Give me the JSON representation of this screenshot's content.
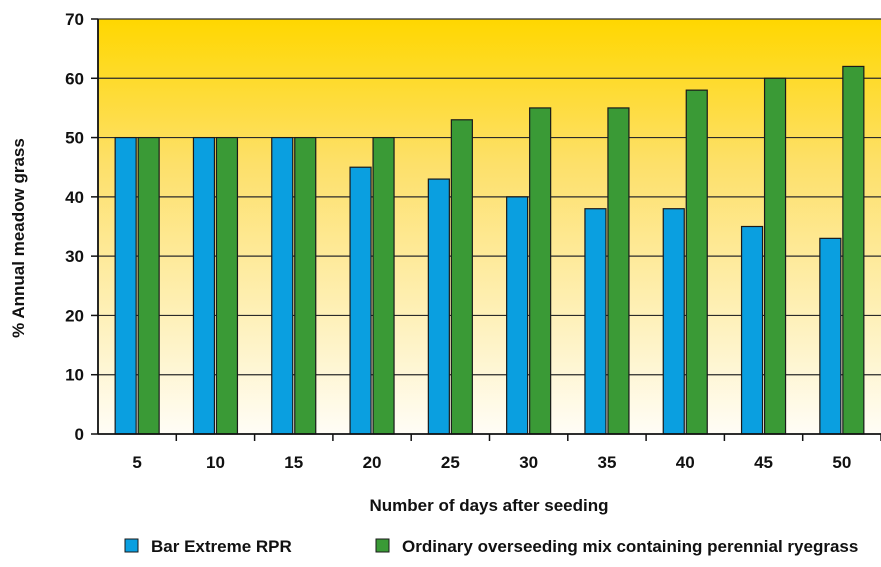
{
  "chart_data": {
    "type": "bar",
    "categories": [
      "5",
      "10",
      "15",
      "20",
      "25",
      "30",
      "35",
      "40",
      "45",
      "50"
    ],
    "series": [
      {
        "name": "Bar Extreme RPR",
        "color": "#0a9fe0",
        "values": [
          50,
          50,
          50,
          45,
          43,
          40,
          38,
          38,
          35,
          33
        ]
      },
      {
        "name": "Ordinary overseeding mix containing perennial ryegrass",
        "color": "#3a9a36",
        "values": [
          50,
          50,
          50,
          50,
          53,
          55,
          55,
          58,
          60,
          62
        ]
      }
    ],
    "xlabel": "Number of days after seeding",
    "ylabel": "% Annual meadow grass",
    "ylim": [
      0,
      70
    ],
    "yticks": [
      0,
      10,
      20,
      30,
      40,
      50,
      60,
      70
    ],
    "grid": true,
    "legend": "bottom",
    "background_gradient": [
      "#ffd700",
      "#fffdf6"
    ]
  }
}
